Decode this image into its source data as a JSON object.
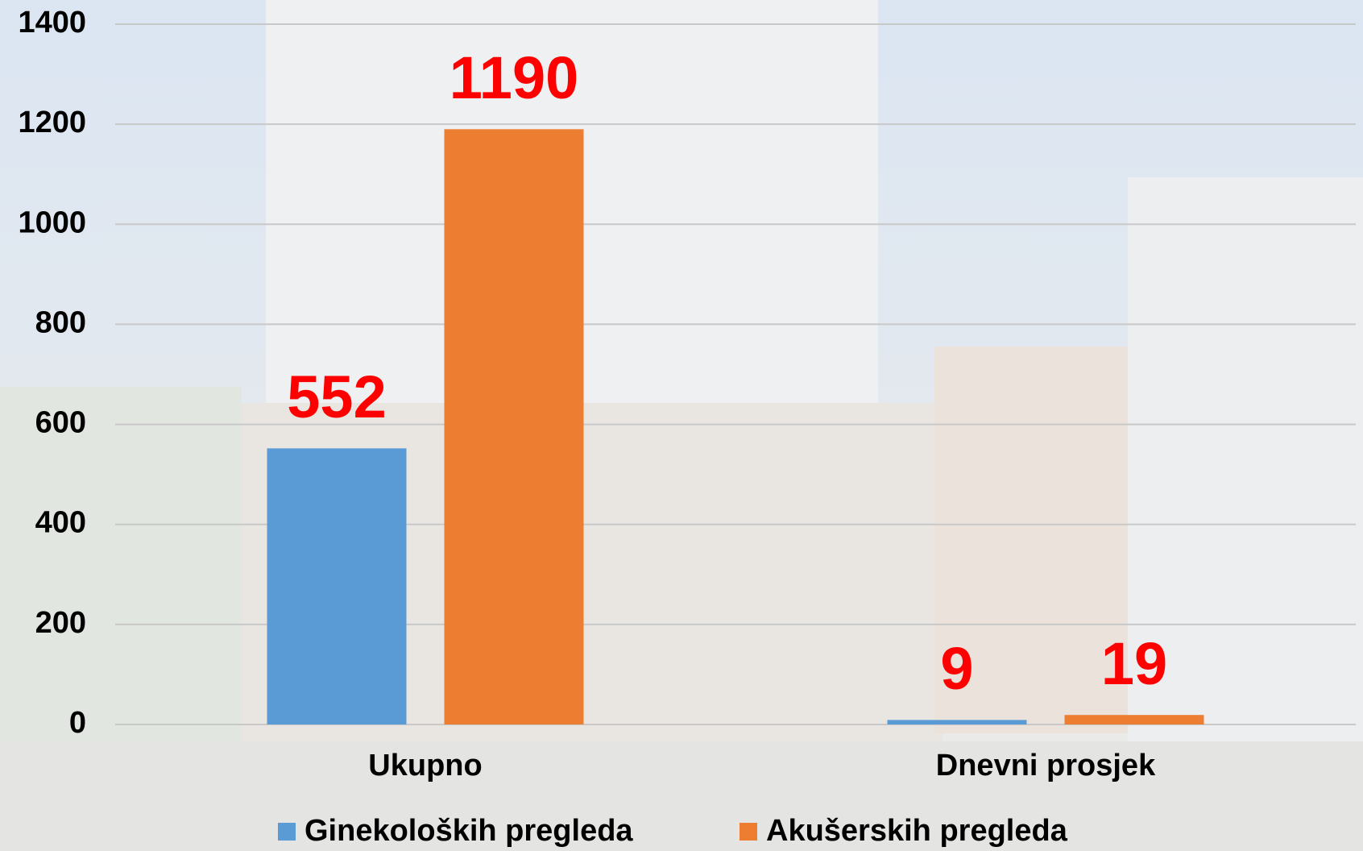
{
  "chart_data": {
    "type": "bar",
    "categories": [
      "Ukupno",
      "Dnevni prosjek"
    ],
    "series": [
      {
        "name": "Ginekoloških pregleda",
        "color": "#5b9bd5",
        "values": [
          552,
          9
        ]
      },
      {
        "name": "Akušerskih pregleda",
        "color": "#ed7d31",
        "values": [
          1190,
          19
        ]
      }
    ],
    "ylim": [
      0,
      1400
    ],
    "yticks": [
      0,
      200,
      400,
      600,
      800,
      1000,
      1200,
      1400
    ],
    "grid": true,
    "legend": "bottom",
    "value_label_color": "#ff0000"
  }
}
